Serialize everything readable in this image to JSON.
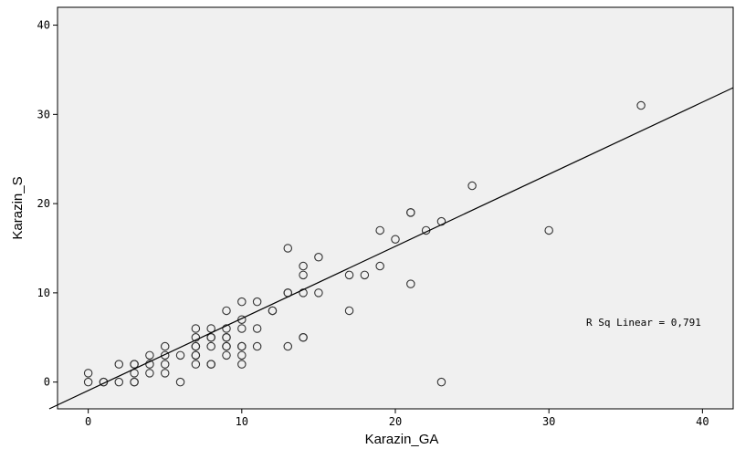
{
  "chart_data": {
    "type": "scatter",
    "xlabel": "Karazin_GA",
    "ylabel": "Karazin_S",
    "xlim": [
      -2,
      42
    ],
    "ylim": [
      -3,
      42
    ],
    "x_ticks": [
      0,
      10,
      20,
      30,
      40
    ],
    "y_ticks": [
      0,
      10,
      20,
      30,
      40
    ],
    "grid": false,
    "plot_background": "#f0f0f0",
    "marker_color": "#333333",
    "annotation": "R Sq Linear = 0,791",
    "fit_line": {
      "slope": 0.808,
      "intercept": -0.95
    },
    "points": [
      [
        0,
        0
      ],
      [
        0,
        1
      ],
      [
        1,
        0
      ],
      [
        1,
        0
      ],
      [
        2,
        0
      ],
      [
        2,
        2
      ],
      [
        3,
        0
      ],
      [
        3,
        0
      ],
      [
        3,
        1
      ],
      [
        3,
        2
      ],
      [
        3,
        2
      ],
      [
        4,
        1
      ],
      [
        4,
        2
      ],
      [
        4,
        3
      ],
      [
        5,
        1
      ],
      [
        5,
        2
      ],
      [
        5,
        3
      ],
      [
        5,
        4
      ],
      [
        6,
        0
      ],
      [
        6,
        3
      ],
      [
        7,
        2
      ],
      [
        7,
        3
      ],
      [
        7,
        3
      ],
      [
        7,
        4
      ],
      [
        7,
        4
      ],
      [
        7,
        5
      ],
      [
        7,
        6
      ],
      [
        8,
        2
      ],
      [
        8,
        2
      ],
      [
        8,
        4
      ],
      [
        8,
        5
      ],
      [
        8,
        5
      ],
      [
        8,
        6
      ],
      [
        9,
        3
      ],
      [
        9,
        4
      ],
      [
        9,
        4
      ],
      [
        9,
        5
      ],
      [
        9,
        5
      ],
      [
        9,
        6
      ],
      [
        9,
        8
      ],
      [
        10,
        2
      ],
      [
        10,
        3
      ],
      [
        10,
        4
      ],
      [
        10,
        4
      ],
      [
        10,
        6
      ],
      [
        10,
        7
      ],
      [
        10,
        9
      ],
      [
        11,
        4
      ],
      [
        11,
        6
      ],
      [
        11,
        9
      ],
      [
        12,
        8
      ],
      [
        12,
        8
      ],
      [
        13,
        4
      ],
      [
        13,
        10
      ],
      [
        13,
        10
      ],
      [
        13,
        15
      ],
      [
        14,
        5
      ],
      [
        14,
        5
      ],
      [
        14,
        10
      ],
      [
        14,
        12
      ],
      [
        14,
        13
      ],
      [
        15,
        10
      ],
      [
        15,
        14
      ],
      [
        17,
        8
      ],
      [
        17,
        12
      ],
      [
        18,
        12
      ],
      [
        19,
        13
      ],
      [
        19,
        17
      ],
      [
        20,
        16
      ],
      [
        21,
        11
      ],
      [
        21,
        19
      ],
      [
        21,
        19
      ],
      [
        22,
        17
      ],
      [
        23,
        0
      ],
      [
        23,
        18
      ],
      [
        25,
        22
      ],
      [
        30,
        17
      ],
      [
        36,
        31
      ]
    ]
  }
}
